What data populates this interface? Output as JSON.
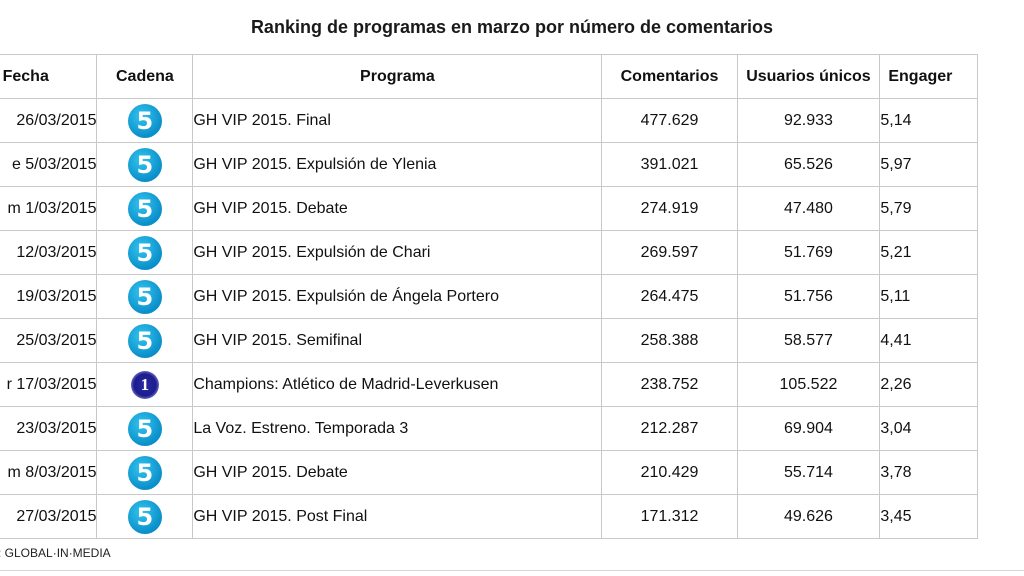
{
  "title": "Ranking de programas en marzo por número de comentarios",
  "headers": {
    "fecha": "Fecha",
    "cadena": "Cadena",
    "programa": "Programa",
    "comentarios": "Comentarios",
    "usuarios": "Usuarios únicos",
    "engagement": "Engager"
  },
  "rows": [
    {
      "fecha": "26/03/2015",
      "cadena_icon": "telecinco-logo-icon",
      "cadena_text": "5",
      "programa": "GH VIP 2015. Final",
      "comentarios": "477.629",
      "usuarios": "92.933",
      "engagement": "5,14"
    },
    {
      "fecha": "e 5/03/2015",
      "cadena_icon": "telecinco-logo-icon",
      "cadena_text": "5",
      "programa": "GH VIP 2015. Expulsión de Ylenia",
      "comentarios": "391.021",
      "usuarios": "65.526",
      "engagement": "5,97"
    },
    {
      "fecha": "m 1/03/2015",
      "cadena_icon": "telecinco-logo-icon",
      "cadena_text": "5",
      "programa": "GH VIP 2015. Debate",
      "comentarios": "274.919",
      "usuarios": "47.480",
      "engagement": "5,79"
    },
    {
      "fecha": "12/03/2015",
      "cadena_icon": "telecinco-logo-icon",
      "cadena_text": "5",
      "programa": "GH VIP 2015. Expulsión de Chari",
      "comentarios": "269.597",
      "usuarios": "51.769",
      "engagement": "5,21"
    },
    {
      "fecha": "19/03/2015",
      "cadena_icon": "telecinco-logo-icon",
      "cadena_text": "5",
      "programa": "GH VIP 2015. Expulsión de Ángela Portero",
      "comentarios": "264.475",
      "usuarios": "51.756",
      "engagement": "5,11"
    },
    {
      "fecha": "25/03/2015",
      "cadena_icon": "telecinco-logo-icon",
      "cadena_text": "5",
      "programa": "GH VIP 2015. Semifinal",
      "comentarios": "258.388",
      "usuarios": "58.577",
      "engagement": "4,41"
    },
    {
      "fecha": "r 17/03/2015",
      "cadena_icon": "la1-logo-icon",
      "cadena_text": "1",
      "programa": "Champions: Atlético de Madrid-Leverkusen",
      "comentarios": "238.752",
      "usuarios": "105.522",
      "engagement": "2,26"
    },
    {
      "fecha": "23/03/2015",
      "cadena_icon": "telecinco-logo-icon",
      "cadena_text": "5",
      "programa": "La Voz. Estreno. Temporada 3",
      "comentarios": "212.287",
      "usuarios": "69.904",
      "engagement": "3,04"
    },
    {
      "fecha": "m 8/03/2015",
      "cadena_icon": "telecinco-logo-icon",
      "cadena_text": "5",
      "programa": "GH VIP 2015. Debate",
      "comentarios": "210.429",
      "usuarios": "55.714",
      "engagement": "3,78"
    },
    {
      "fecha": "27/03/2015",
      "cadena_icon": "telecinco-logo-icon",
      "cadena_text": "5",
      "programa": "GH VIP 2015. Post Final",
      "comentarios": "171.312",
      "usuarios": "49.626",
      "engagement": "3,45"
    }
  ],
  "source": ": GLOBAL·IN·MEDIA",
  "colors": {
    "telecinco": "#1aa6dc",
    "la1": "#1c1c8c",
    "border": "#c9c9c9"
  }
}
